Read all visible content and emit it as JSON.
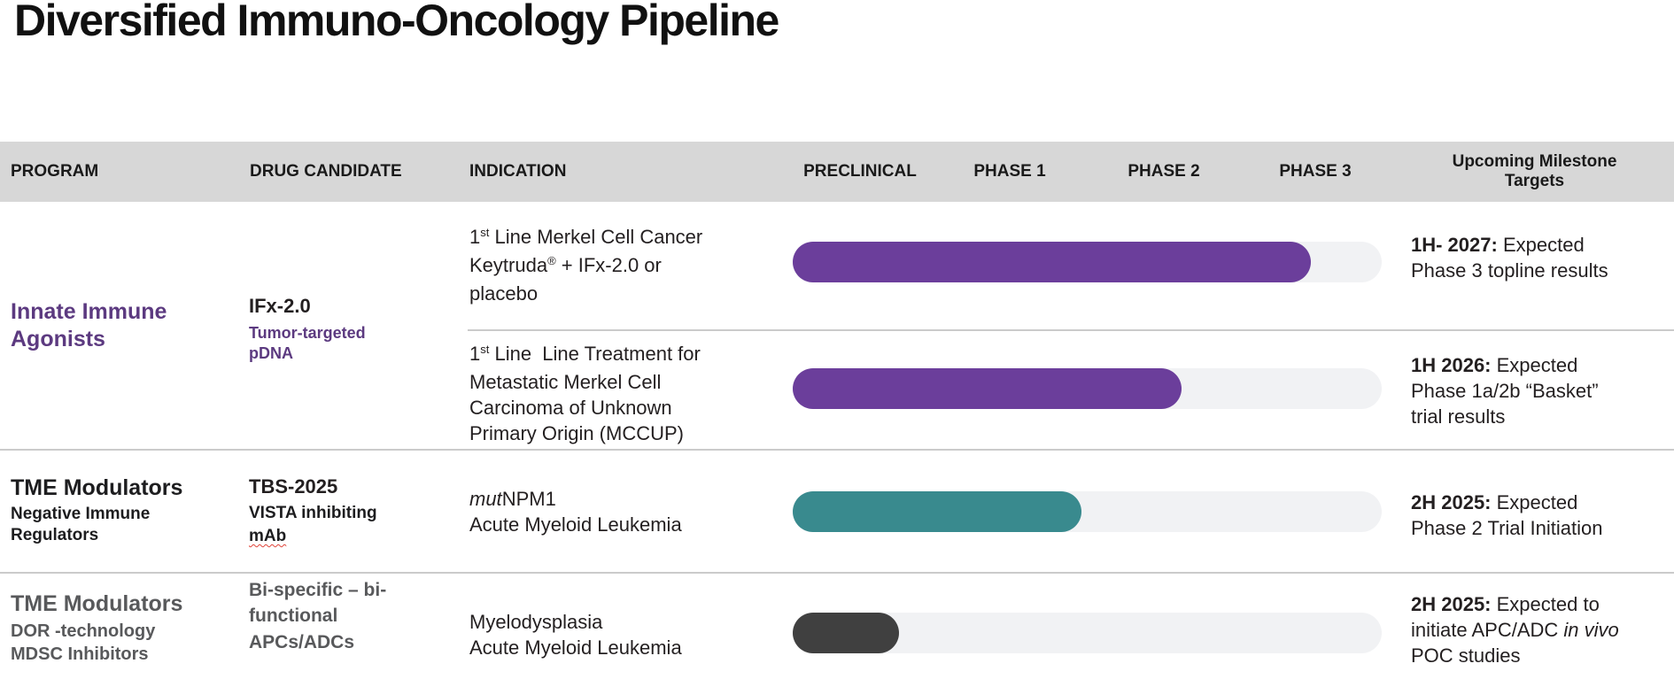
{
  "title": "Diversified Immuno-Oncology Pipeline",
  "header": {
    "program": "PROGRAM",
    "drug_candidate": "DRUG CANDIDATE",
    "indication": "INDICATION",
    "phases": [
      "PRECLINICAL",
      "PHASE 1",
      "PHASE 2",
      "PHASE 3"
    ],
    "milestone": "Upcoming Milestone Targets"
  },
  "colors": {
    "header_band": "#D7D7D7",
    "purple_bar": "#6B3E9B",
    "teal_bar": "#398A8E",
    "dark_bar": "#404040",
    "bar_track": "#F1F2F4",
    "program_purple_text": "#5C3A80",
    "gray_text": "#58595B",
    "divider": "#CBCBCB"
  },
  "rows": [
    {
      "program": {
        "lines": [
          "Innate Immune",
          "Agonists"
        ]
      },
      "drug": {
        "name": "IFx-2.0",
        "subtitle_lines": [
          "Tumor-targeted",
          "pDNA"
        ]
      },
      "entries": [
        {
          "indication": {
            "sup_base": "1",
            "sup": "st",
            "line1_rest": " Line Merkel Cell Cancer",
            "line2_pre": "Keytruda",
            "line2_sup": "®",
            "line2_rest": " + IFx-2.0 or",
            "line3": "placebo"
          },
          "bar": {
            "pct": 88,
            "color": "#6B3E9B",
            "stage": "Phase 3"
          },
          "milestone": {
            "bold": "1H- 2027:",
            "after_bold": " Expected",
            "lines": [
              "Phase 3 topline results"
            ]
          }
        },
        {
          "indication": {
            "sup_base": "1",
            "sup": "st",
            "line1_rest": " Line  Line Treatment for",
            "lines": [
              "Metastatic Merkel Cell",
              "Carcinoma of Unknown",
              "Primary Origin (MCCUP)"
            ]
          },
          "bar": {
            "pct": 66,
            "color": "#6B3E9B",
            "stage": "Phase 2"
          },
          "milestone": {
            "bold": "1H 2026:",
            "after_bold": " Expected",
            "lines": [
              "Phase 1a/2b “Basket”",
              "trial results"
            ]
          }
        }
      ]
    },
    {
      "program": {
        "title": "TME Modulators",
        "lines": [
          "Negative Immune",
          "Regulators"
        ]
      },
      "drug": {
        "name": "TBS-2025",
        "subtitle_line1": "VISTA inhibiting",
        "subtitle_squiggle": "mAb"
      },
      "indication": {
        "italic": "mut",
        "rest": "NPM1",
        "lines": [
          "Acute Myeloid Leukemia"
        ]
      },
      "bar": {
        "pct": 49,
        "color": "#398A8E",
        "stage": "Phase 1"
      },
      "milestone": {
        "bold": "2H 2025:",
        "after_bold": " Expected",
        "lines": [
          "Phase 2 Trial Initiation"
        ]
      }
    },
    {
      "program": {
        "title": "TME Modulators",
        "lines": [
          "DOR -technology",
          "MDSC Inhibitors"
        ]
      },
      "drug": {
        "lines": [
          "Bi-specific – bi-",
          "functional",
          "APCs/ADCs"
        ]
      },
      "indication": {
        "lines": [
          "Myelodysplasia",
          "Acute Myeloid Leukemia"
        ]
      },
      "bar": {
        "pct": 18,
        "color": "#404040",
        "stage": "Preclinical"
      },
      "milestone": {
        "bold": "2H 2025:",
        "after_bold": " Expected to",
        "line2_pre": "initiate APC/ADC ",
        "line2_italic": "in vivo",
        "line3": "POC studies"
      }
    }
  ]
}
